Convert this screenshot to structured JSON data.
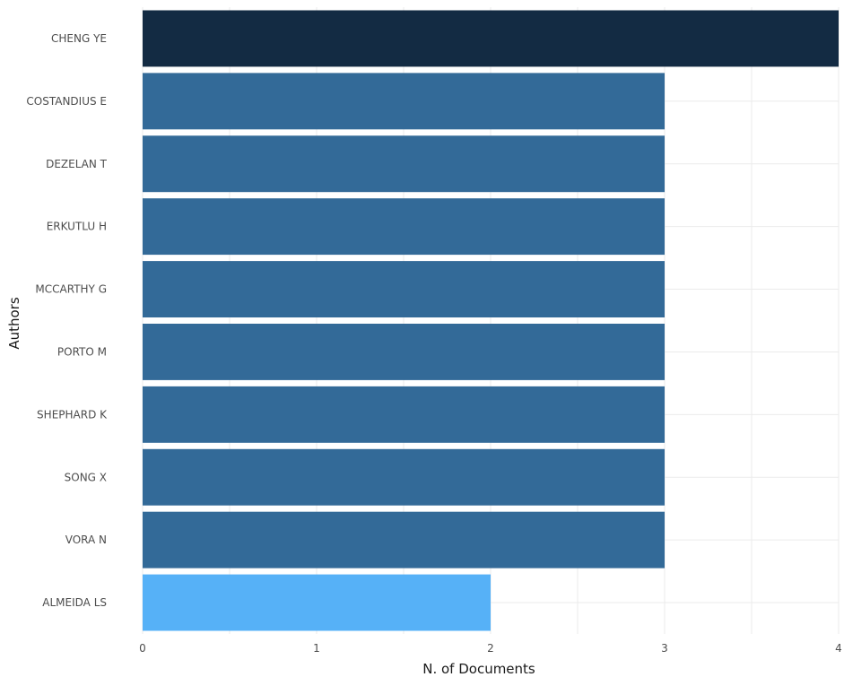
{
  "chart_data": {
    "type": "bar",
    "orientation": "horizontal",
    "categories": [
      "CHENG YE",
      "COSTANDIUS E",
      "DEZELAN T",
      "ERKUTLU H",
      "MCCARTHY G",
      "PORTO M",
      "SHEPHARD K",
      "SONG X",
      "VORA N",
      "ALMEIDA LS"
    ],
    "values": [
      4,
      3,
      3,
      3,
      3,
      3,
      3,
      3,
      3,
      2
    ],
    "xlabel": "N. of Documents",
    "ylabel": "Authors",
    "xlim": [
      0,
      4
    ],
    "x_ticks": [
      "0",
      "1",
      "2",
      "3",
      "4"
    ],
    "grid": true,
    "color_scale": {
      "low": "#56B1F7",
      "mid": "#336A98",
      "high": "#132B43"
    }
  }
}
